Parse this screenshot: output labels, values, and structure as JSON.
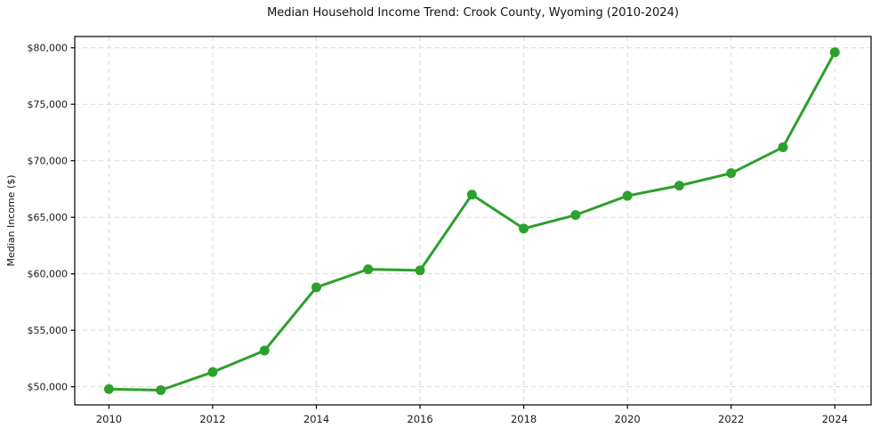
{
  "chart_data": {
    "type": "line",
    "title": "Median Household Income Trend: Crook County, Wyoming (2010-2024)",
    "xlabel": "",
    "ylabel": "Median Income ($)",
    "x": [
      2010,
      2011,
      2012,
      2013,
      2014,
      2015,
      2016,
      2017,
      2018,
      2019,
      2020,
      2021,
      2022,
      2023,
      2024
    ],
    "values": [
      49800,
      49700,
      51300,
      53200,
      58800,
      60400,
      60300,
      67000,
      64000,
      65200,
      66900,
      67800,
      68900,
      71200,
      79600
    ],
    "xticks": [
      2010,
      2012,
      2014,
      2016,
      2018,
      2020,
      2022,
      2024
    ],
    "yticks": [
      50000,
      55000,
      60000,
      65000,
      70000,
      75000,
      80000
    ],
    "y_tick_prefix": "$",
    "xlim": [
      2009.34,
      2024.7
    ],
    "ylim": [
      48400,
      81000
    ],
    "grid": true,
    "grid_style": "dashed",
    "legend": "none",
    "line_color": "#2ca02c",
    "marker": "circle",
    "marker_radius": 5.5,
    "line_width": 3,
    "grid_color": "#d9d9d9",
    "axis_color": "#000000",
    "tick_color": "#1a1a1a",
    "background_color": "#ffffff"
  }
}
